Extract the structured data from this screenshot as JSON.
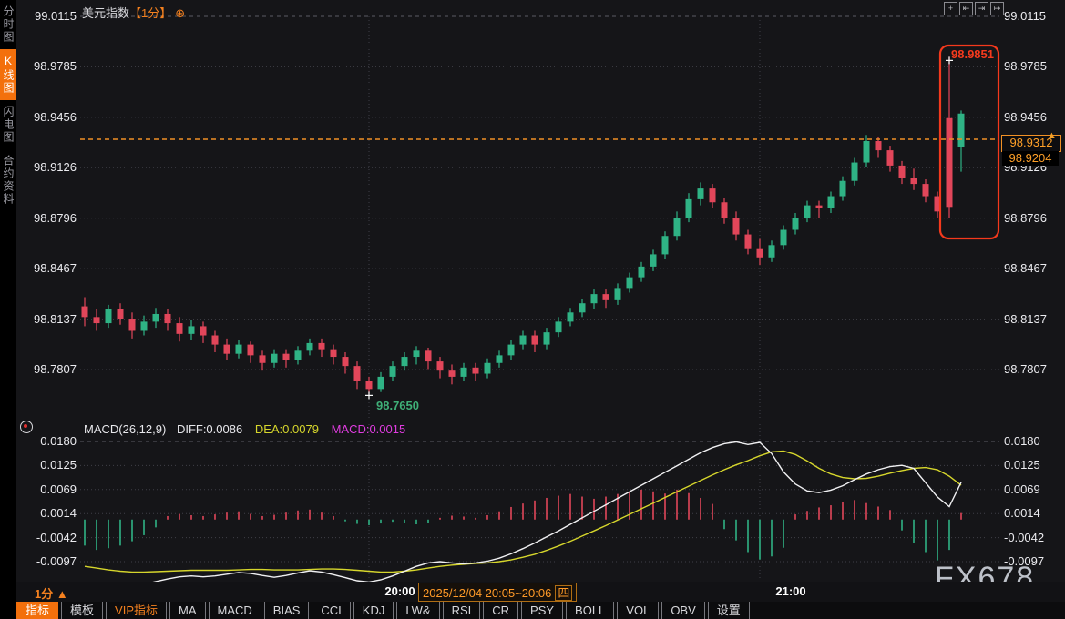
{
  "title": {
    "symbol": "美元指数",
    "period": "【1分】",
    "add_icon": "⊕"
  },
  "sidebar": {
    "items": [
      {
        "label": "分时图",
        "active": false
      },
      {
        "label": "K线图",
        "active": true
      },
      {
        "label": "闪电图",
        "active": false
      },
      {
        "label": "合约资料",
        "active": false
      }
    ]
  },
  "top_right_icons": [
    {
      "name": "crosshair-icon",
      "glyph": "+"
    },
    {
      "name": "zoom-axis-left-icon",
      "glyph": "⇤"
    },
    {
      "name": "zoom-axis-right-icon",
      "glyph": "⇥"
    },
    {
      "name": "pan-right-icon",
      "glyph": "↦"
    }
  ],
  "price_axis_ticks": [
    "99.0115",
    "98.9785",
    "98.9456",
    "98.9126",
    "98.8796",
    "98.8467",
    "98.8137",
    "98.7807"
  ],
  "macd_axis_ticks": [
    "0.0180",
    "0.0125",
    "0.0069",
    "0.0014",
    "-0.0042",
    "-0.0097"
  ],
  "macd_header": {
    "name": "MACD(26,12,9)",
    "diff_label": "DIFF:0.0086",
    "dea_label": "DEA:0.0079",
    "macd_label": "MACD:0.0015"
  },
  "price_labels": {
    "current": "98.9312",
    "secondary": "98.9204",
    "spike_high": "98.9851",
    "session_low": "98.7650"
  },
  "time_axis": {
    "period": "1分",
    "period_arrow": "▲",
    "hours": [
      "20:00",
      "21:00"
    ],
    "date_range": "2025/12/04 20:05~20:06",
    "weekday": "四"
  },
  "bottom_toolbar": [
    {
      "label": "指标",
      "state": "active"
    },
    {
      "label": "模板",
      "state": "normal"
    },
    {
      "label": "VIP指标",
      "state": "vip"
    },
    {
      "label": "MA",
      "state": "normal"
    },
    {
      "label": "MACD",
      "state": "normal"
    },
    {
      "label": "BIAS",
      "state": "normal"
    },
    {
      "label": "CCI",
      "state": "normal"
    },
    {
      "label": "KDJ",
      "state": "normal"
    },
    {
      "label": "LW&",
      "state": "normal"
    },
    {
      "label": "RSI",
      "state": "normal"
    },
    {
      "label": "CR",
      "state": "normal"
    },
    {
      "label": "PSY",
      "state": "normal"
    },
    {
      "label": "BOLL",
      "state": "normal"
    },
    {
      "label": "VOL",
      "state": "normal"
    },
    {
      "label": "OBV",
      "state": "normal"
    },
    {
      "label": "设置",
      "state": "normal"
    }
  ],
  "watermark": "FX678",
  "colors": {
    "up_green": "#2fb385",
    "down_red": "#e2465a",
    "accent_orange": "#f5811f",
    "price_line_orange": "#f09025",
    "highlight_box_red": "#f5391c",
    "dea_yellow": "#d6d62c",
    "diff_white": "#f0f0f2",
    "macd_magenta": "#e03ce0",
    "grid": "#3f3f47",
    "background": "#151518"
  },
  "chart_data": {
    "type": "candlestick",
    "title": "美元指数 1分",
    "ylim": [
      98.7807,
      99.0115
    ],
    "y_ticks": [
      99.0115,
      98.9785,
      98.9456,
      98.9126,
      98.8796,
      98.8467,
      98.8137,
      98.7807
    ],
    "current_price": 98.9312,
    "secondary_price": 98.9204,
    "spike_high": 98.9851,
    "session_low": 98.765,
    "hour_marks": [
      {
        "label": "20:00",
        "index": 24
      },
      {
        "label": "21:00",
        "index": 57
      }
    ],
    "candles_ohlc": [
      [
        98.822,
        98.828,
        98.809,
        98.815
      ],
      [
        98.815,
        98.82,
        98.806,
        98.811
      ],
      [
        98.811,
        98.823,
        98.808,
        98.82
      ],
      [
        98.82,
        98.824,
        98.81,
        98.814
      ],
      [
        98.814,
        98.818,
        98.801,
        98.806
      ],
      [
        98.806,
        98.816,
        98.803,
        98.812
      ],
      [
        98.812,
        98.821,
        98.808,
        98.817
      ],
      [
        98.817,
        98.82,
        98.806,
        98.811
      ],
      [
        98.811,
        98.815,
        98.799,
        98.804
      ],
      [
        98.804,
        98.813,
        98.8,
        98.809
      ],
      [
        98.809,
        98.812,
        98.798,
        98.803
      ],
      [
        98.803,
        98.806,
        98.792,
        98.797
      ],
      [
        98.797,
        98.801,
        98.787,
        98.791
      ],
      [
        98.791,
        98.8,
        98.788,
        98.797
      ],
      [
        98.797,
        98.799,
        98.785,
        98.79
      ],
      [
        98.79,
        98.793,
        98.78,
        98.785
      ],
      [
        98.785,
        98.794,
        98.782,
        98.791
      ],
      [
        98.791,
        98.794,
        98.782,
        98.787
      ],
      [
        98.787,
        98.796,
        98.784,
        98.793
      ],
      [
        98.793,
        98.801,
        98.79,
        98.798
      ],
      [
        98.798,
        98.801,
        98.789,
        98.794
      ],
      [
        98.794,
        98.797,
        98.784,
        98.789
      ],
      [
        98.789,
        98.792,
        98.778,
        98.783
      ],
      [
        98.783,
        98.786,
        98.768,
        98.773
      ],
      [
        98.773,
        98.776,
        98.765,
        98.768
      ],
      [
        98.768,
        98.779,
        98.766,
        98.776
      ],
      [
        98.776,
        98.786,
        98.773,
        98.783
      ],
      [
        98.783,
        98.792,
        98.78,
        98.789
      ],
      [
        98.789,
        98.796,
        98.784,
        98.793
      ],
      [
        98.793,
        98.795,
        98.781,
        98.786
      ],
      [
        98.786,
        98.789,
        98.775,
        98.78
      ],
      [
        98.78,
        98.784,
        98.771,
        98.776
      ],
      [
        98.776,
        98.785,
        98.773,
        98.782
      ],
      [
        98.782,
        98.785,
        98.773,
        98.778
      ],
      [
        98.778,
        98.788,
        98.775,
        98.785
      ],
      [
        98.785,
        98.793,
        98.782,
        98.79
      ],
      [
        98.79,
        98.8,
        98.787,
        98.797
      ],
      [
        98.797,
        98.806,
        98.794,
        98.803
      ],
      [
        98.803,
        98.806,
        98.792,
        98.797
      ],
      [
        98.797,
        98.808,
        98.794,
        98.805
      ],
      [
        98.805,
        98.815,
        98.802,
        98.812
      ],
      [
        98.812,
        98.821,
        98.809,
        98.818
      ],
      [
        98.818,
        98.827,
        98.815,
        98.824
      ],
      [
        98.824,
        98.833,
        98.82,
        98.83
      ],
      [
        98.83,
        98.833,
        98.821,
        98.826
      ],
      [
        98.826,
        98.837,
        98.823,
        98.834
      ],
      [
        98.834,
        98.844,
        98.831,
        98.841
      ],
      [
        98.841,
        98.851,
        98.838,
        98.848
      ],
      [
        98.848,
        98.859,
        98.845,
        98.856
      ],
      [
        98.856,
        98.871,
        98.853,
        98.868
      ],
      [
        98.868,
        98.884,
        98.865,
        98.88
      ],
      [
        98.88,
        98.896,
        98.877,
        98.892
      ],
      [
        98.892,
        98.903,
        98.888,
        98.899
      ],
      [
        98.899,
        98.902,
        98.886,
        98.89
      ],
      [
        98.89,
        98.893,
        98.876,
        98.88
      ],
      [
        98.88,
        98.884,
        98.865,
        98.869
      ],
      [
        98.869,
        98.872,
        98.856,
        98.86
      ],
      [
        98.86,
        98.866,
        98.849,
        98.854
      ],
      [
        98.854,
        98.865,
        98.851,
        98.862
      ],
      [
        98.862,
        98.875,
        98.859,
        98.872
      ],
      [
        98.872,
        98.883,
        98.869,
        98.88
      ],
      [
        98.88,
        98.891,
        98.877,
        98.888
      ],
      [
        98.888,
        98.891,
        98.88,
        98.886
      ],
      [
        98.886,
        98.897,
        98.883,
        98.894
      ],
      [
        98.894,
        98.907,
        98.891,
        98.904
      ],
      [
        98.904,
        98.919,
        98.901,
        98.916
      ],
      [
        98.916,
        98.934,
        98.913,
        98.93
      ],
      [
        98.93,
        98.933,
        98.919,
        98.924
      ],
      [
        98.924,
        98.927,
        98.91,
        98.914
      ],
      [
        98.914,
        98.917,
        98.902,
        98.906
      ],
      [
        98.906,
        98.912,
        98.898,
        98.902
      ],
      [
        98.902,
        98.905,
        98.89,
        98.894
      ],
      [
        98.894,
        98.897,
        98.88,
        98.884
      ],
      [
        98.945,
        98.9851,
        98.88,
        98.887
      ],
      [
        98.926,
        98.95,
        98.91,
        98.948
      ]
    ],
    "macd": {
      "params": [
        26,
        12,
        9
      ],
      "diff_current": 0.0086,
      "dea_current": 0.0079,
      "macd_current": 0.0015,
      "ylim": [
        -0.0097,
        0.018
      ],
      "y_ticks": [
        0.018,
        0.0125,
        0.0069,
        0.0014,
        -0.0042,
        -0.0097
      ],
      "diff": [
        -0.0148,
        -0.0153,
        -0.0157,
        -0.0158,
        -0.0154,
        -0.0149,
        -0.0143,
        -0.0137,
        -0.0132,
        -0.013,
        -0.0132,
        -0.013,
        -0.0126,
        -0.0122,
        -0.0124,
        -0.0129,
        -0.0133,
        -0.0129,
        -0.0123,
        -0.0118,
        -0.0121,
        -0.0127,
        -0.0134,
        -0.0141,
        -0.0144,
        -0.0139,
        -0.013,
        -0.0119,
        -0.0108,
        -0.01,
        -0.0097,
        -0.01,
        -0.0102,
        -0.01,
        -0.0096,
        -0.0089,
        -0.0079,
        -0.0067,
        -0.0054,
        -0.004,
        -0.0026,
        -0.0011,
        0.0004,
        0.0019,
        0.0034,
        0.0049,
        0.0064,
        0.0079,
        0.0094,
        0.0109,
        0.0124,
        0.0139,
        0.0154,
        0.0166,
        0.0175,
        0.0179,
        0.0173,
        0.0178,
        0.0152,
        0.011,
        0.0082,
        0.0066,
        0.0062,
        0.0068,
        0.0078,
        0.0092,
        0.0105,
        0.0115,
        0.0122,
        0.0125,
        0.0118,
        0.0085,
        0.0052,
        0.003,
        0.0086
      ],
      "dea": [
        -0.0108,
        -0.0112,
        -0.0116,
        -0.0119,
        -0.0121,
        -0.0121,
        -0.012,
        -0.0119,
        -0.0118,
        -0.0117,
        -0.0117,
        -0.0117,
        -0.0117,
        -0.0116,
        -0.0115,
        -0.0115,
        -0.0116,
        -0.0116,
        -0.0116,
        -0.0115,
        -0.0114,
        -0.0114,
        -0.0115,
        -0.0117,
        -0.0119,
        -0.0121,
        -0.0121,
        -0.0119,
        -0.0116,
        -0.0112,
        -0.0108,
        -0.0105,
        -0.0103,
        -0.0101,
        -0.01,
        -0.0097,
        -0.0093,
        -0.0087,
        -0.008,
        -0.0071,
        -0.0061,
        -0.005,
        -0.0038,
        -0.0026,
        -0.0014,
        -0.0001,
        0.0012,
        0.0025,
        0.0038,
        0.0051,
        0.0064,
        0.0077,
        0.009,
        0.0103,
        0.0115,
        0.0126,
        0.0136,
        0.0147,
        0.0156,
        0.0158,
        0.015,
        0.0135,
        0.0118,
        0.0105,
        0.0097,
        0.0094,
        0.0095,
        0.01,
        0.0107,
        0.0113,
        0.0118,
        0.012,
        0.0115,
        0.01,
        0.0079
      ],
      "hist": [
        -0.006,
        -0.007,
        -0.0066,
        -0.006,
        -0.005,
        -0.0036,
        -0.0018,
        0.0008,
        0.0013,
        0.001,
        0.0008,
        0.0012,
        0.0016,
        0.0019,
        0.0013,
        0.0008,
        0.0011,
        0.0016,
        0.0021,
        0.0023,
        0.0016,
        0.0008,
        -0.0004,
        -0.001,
        -0.0013,
        -0.0009,
        -0.0005,
        -0.0008,
        -0.0011,
        -0.0007,
        0.0004,
        0.0009,
        0.0007,
        0.0004,
        0.001,
        0.0019,
        0.0029,
        0.0037,
        0.0044,
        0.005,
        0.0055,
        0.0059,
        0.0053,
        0.0048,
        0.0053,
        0.0059,
        0.0064,
        0.0069,
        0.0065,
        0.006,
        0.0069,
        0.0061,
        0.005,
        0.0036,
        -0.0022,
        -0.0048,
        -0.0075,
        -0.0092,
        -0.0085,
        -0.0065,
        0.0012,
        0.002,
        0.0028,
        0.0033,
        0.004,
        0.0045,
        0.0038,
        0.003,
        0.0022,
        -0.0025,
        -0.0055,
        -0.0075,
        -0.0094,
        -0.007,
        0.0015
      ]
    }
  }
}
